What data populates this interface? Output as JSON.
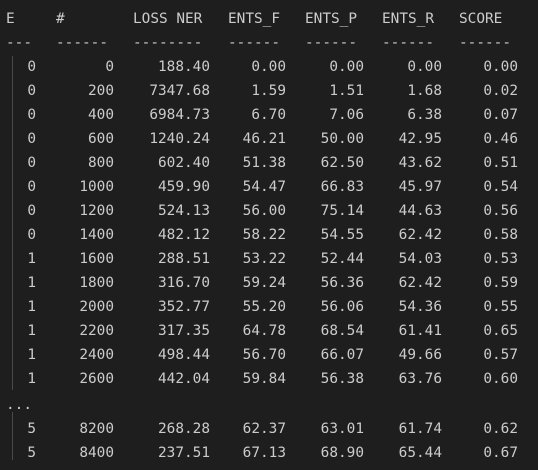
{
  "header": [
    "E",
    "#",
    "LOSS NER",
    "ENTS_F",
    "ENTS_P",
    "ENTS_R",
    "SCORE"
  ],
  "separator": [
    "---",
    "------",
    "--------",
    "------",
    "------",
    "------",
    "------"
  ],
  "rows_a": [
    [
      "0",
      "0",
      "188.40",
      "0.00",
      "0.00",
      "0.00",
      "0.00"
    ],
    [
      "0",
      "200",
      "7347.68",
      "1.59",
      "1.51",
      "1.68",
      "0.02"
    ],
    [
      "0",
      "400",
      "6984.73",
      "6.70",
      "7.06",
      "6.38",
      "0.07"
    ],
    [
      "0",
      "600",
      "1240.24",
      "46.21",
      "50.00",
      "42.95",
      "0.46"
    ],
    [
      "0",
      "800",
      "602.40",
      "51.38",
      "62.50",
      "43.62",
      "0.51"
    ],
    [
      "0",
      "1000",
      "459.90",
      "54.47",
      "66.83",
      "45.97",
      "0.54"
    ],
    [
      "0",
      "1200",
      "524.13",
      "56.00",
      "75.14",
      "44.63",
      "0.56"
    ],
    [
      "0",
      "1400",
      "482.12",
      "58.22",
      "54.55",
      "62.42",
      "0.58"
    ],
    [
      "1",
      "1600",
      "288.51",
      "53.22",
      "52.44",
      "54.03",
      "0.53"
    ],
    [
      "1",
      "1800",
      "316.70",
      "59.24",
      "56.36",
      "62.42",
      "0.59"
    ],
    [
      "1",
      "2000",
      "352.77",
      "55.20",
      "56.06",
      "54.36",
      "0.55"
    ],
    [
      "1",
      "2200",
      "317.35",
      "64.78",
      "68.54",
      "61.41",
      "0.65"
    ],
    [
      "1",
      "2400",
      "498.44",
      "56.70",
      "66.07",
      "49.66",
      "0.57"
    ],
    [
      "1",
      "2600",
      "442.04",
      "59.84",
      "56.38",
      "63.76",
      "0.60"
    ]
  ],
  "ellipsis": "...",
  "rows_b": [
    [
      "5",
      "8200",
      "268.28",
      "62.37",
      "63.01",
      "61.74",
      "0.62"
    ],
    [
      "5",
      "8400",
      "237.51",
      "67.13",
      "68.90",
      "65.44",
      "0.67"
    ]
  ]
}
